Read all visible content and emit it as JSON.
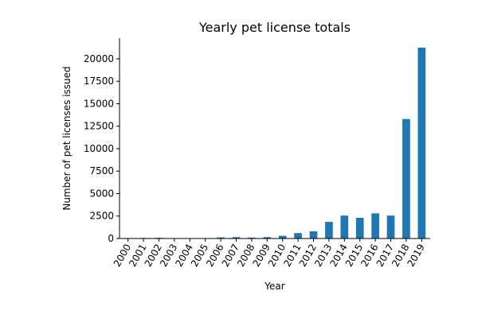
{
  "chart_data": {
    "type": "bar",
    "title": "Yearly pet license totals",
    "xlabel": "Year",
    "ylabel": "Number of pet licenses issued",
    "categories": [
      "2000",
      "2001",
      "2002",
      "2003",
      "2004",
      "2005",
      "2006",
      "2007",
      "2008",
      "2009",
      "2010",
      "2011",
      "2012",
      "2013",
      "2014",
      "2015",
      "2016",
      "2017",
      "2018",
      "2019"
    ],
    "values": [
      50,
      60,
      80,
      20,
      10,
      30,
      120,
      150,
      100,
      150,
      300,
      600,
      800,
      1850,
      2550,
      2300,
      2800,
      2550,
      13300,
      21250
    ],
    "yticks": [
      0,
      2500,
      5000,
      7500,
      10000,
      12500,
      15000,
      17500,
      20000
    ],
    "ylim": [
      0,
      22300
    ],
    "grid": false,
    "bar_color": "#1f77b4"
  }
}
